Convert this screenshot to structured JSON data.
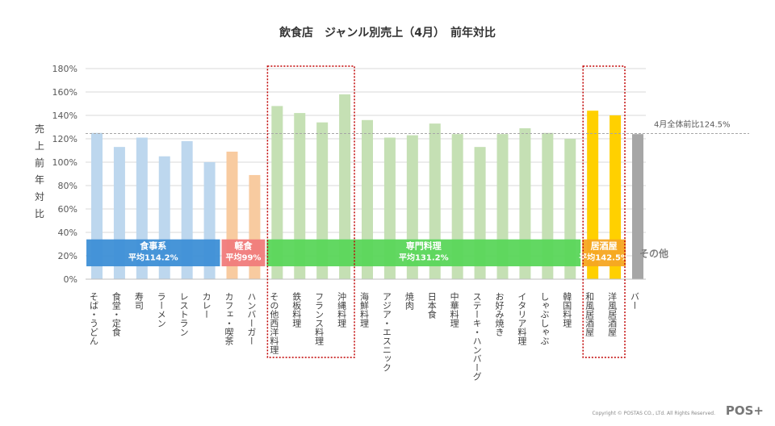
{
  "title": "飲食店　ジャンル別売上（4月）　前年対比",
  "ylabel": "売上前年対比",
  "footer": "Copyright © POSTAS CO., LTd. All Rights Reserved.",
  "logo": "POS+",
  "chart_data": {
    "type": "bar",
    "ylim": [
      0,
      180
    ],
    "yticks": [
      "0%",
      "20%",
      "40%",
      "60%",
      "80%",
      "100%",
      "120%",
      "140%",
      "160%",
      "180%"
    ],
    "grid": true,
    "categories": [
      "そば・うどん",
      "食堂・定食",
      "寿司",
      "ラーメン",
      "レストラン",
      "カレー",
      "カフェ・喫茶",
      "ハンバーガー",
      "その他西洋料理",
      "鉄板料理",
      "フランス料理",
      "沖縄料理",
      "海鮮料理",
      "アジア・エスニック",
      "焼肉",
      "日本食",
      "中華料理",
      "ステーキ・ハンバーグ",
      "お好み焼き",
      "イタリア料理",
      "しゃぶしゃぶ",
      "韓国料理",
      "和風居酒屋",
      "洋風居酒屋",
      "バー"
    ],
    "values": [
      125,
      113,
      121,
      105,
      118,
      100,
      109,
      89,
      148,
      142,
      134,
      158,
      136,
      121,
      123,
      133,
      124,
      113,
      124,
      129,
      125,
      120,
      144,
      140,
      124
    ],
    "groups": [
      {
        "name": "食事系",
        "avg": "平均114.2%",
        "start": 0,
        "end": 5,
        "color": "#3d8fd6",
        "bar_color": "#bdd7ee"
      },
      {
        "name": "軽食",
        "avg": "平均99%",
        "start": 6,
        "end": 7,
        "color": "#f07b7b",
        "bar_color": "#f8cba0"
      },
      {
        "name": "専門料理",
        "avg": "平均131.2%",
        "start": 8,
        "end": 21,
        "color": "#5ad65a",
        "bar_color": "#c5e0b4"
      },
      {
        "name": "居酒屋",
        "avg": "平均142.5%",
        "start": 22,
        "end": 23,
        "color": "#f5a623",
        "bar_color": "#ffd000"
      },
      {
        "name": "その他",
        "avg": "",
        "start": 24,
        "end": 24,
        "color": "#808080",
        "bar_color": "#a6a6a6"
      }
    ],
    "reference": {
      "label": "4月全体前比124.5%",
      "value": 124.5
    },
    "highlight_ranges": [
      [
        8,
        11
      ],
      [
        22,
        23
      ]
    ]
  }
}
